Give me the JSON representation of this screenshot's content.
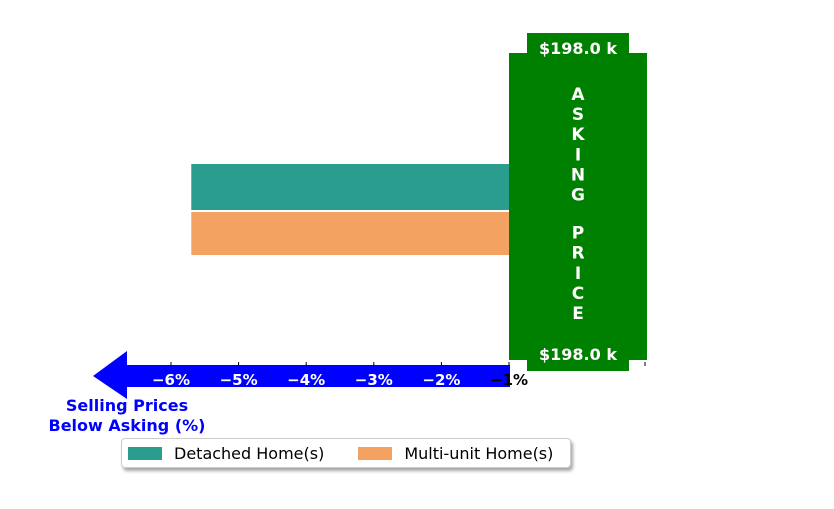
{
  "chart_data": {
    "type": "bar",
    "orientation": "horizontal",
    "categories": [
      "Detached Home(s)",
      "Multi-unit Home(s)"
    ],
    "series": [
      {
        "name": "Detached Home(s)",
        "value": -5.7,
        "color": "#2a9d8f"
      },
      {
        "name": "Multi-unit Home(s)",
        "value": -5.7,
        "color": "#f4a261"
      }
    ],
    "x_ticks": [
      -6,
      -5,
      -4,
      -3,
      -2,
      -1
    ],
    "x_tick_labels": [
      "−6%",
      "−5%",
      "−4%",
      "−3%",
      "−2%",
      "−1%"
    ],
    "xlim": [
      -6.9,
      1
    ],
    "xlabel": "Selling Prices\nBelow Asking (%)",
    "asking_price": {
      "top_label": "$198.0 k",
      "bottom_label": "$198.0 k",
      "vertical_text": "ASKING PRICE",
      "color": "#008000"
    },
    "arrow_color": "#0000ff",
    "legend_placement": "bottom-center",
    "grid": false
  }
}
